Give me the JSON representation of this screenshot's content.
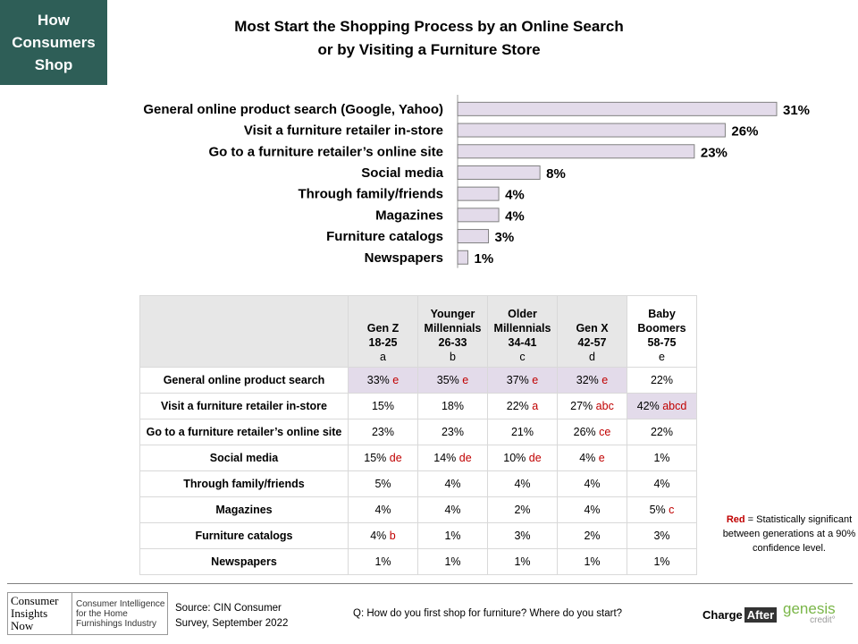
{
  "badge": {
    "line1": "How",
    "line2": "Consumers",
    "line3": "Shop"
  },
  "title": {
    "line1": "Most Start the Shopping Process by an Online Search",
    "line2": "or by Visiting  a Furniture Store"
  },
  "chart_data": {
    "type": "bar",
    "orientation": "horizontal",
    "categories": [
      "General online product search (Google, Yahoo)",
      "Visit a furniture retailer in-store",
      "Go to a furniture retailer’s online site",
      "Social media",
      "Through family/friends",
      "Magazines",
      "Furniture catalogs",
      "Newspapers"
    ],
    "values": [
      31,
      26,
      23,
      8,
      4,
      4,
      3,
      1
    ],
    "value_labels": [
      "31%",
      "26%",
      "23%",
      "8%",
      "4%",
      "4%",
      "3%",
      "1%"
    ],
    "bar_color": "#e3dbea",
    "bar_border": "#808080",
    "xlim": [
      0,
      31
    ]
  },
  "table": {
    "columns": [
      {
        "lines": [
          "Gen Z",
          "18-25"
        ],
        "letter": "a"
      },
      {
        "lines": [
          "Younger",
          "Millennials",
          "26-33"
        ],
        "letter": "b"
      },
      {
        "lines": [
          "Older",
          "Millennials",
          "34-41"
        ],
        "letter": "c"
      },
      {
        "lines": [
          "Gen X",
          "42-57"
        ],
        "letter": "d"
      },
      {
        "lines": [
          "Baby",
          "Boomers",
          "58-75"
        ],
        "letter": "e"
      }
    ],
    "rows": [
      {
        "label": "General online product search",
        "cells": [
          {
            "v": "33%",
            "sig": "e",
            "hl": true
          },
          {
            "v": "35%",
            "sig": "e",
            "hl": true
          },
          {
            "v": "37%",
            "sig": "e",
            "hl": true
          },
          {
            "v": "32%",
            "sig": "e",
            "hl": true
          },
          {
            "v": "22%",
            "sig": "",
            "hl": false
          }
        ]
      },
      {
        "label": "Visit a furniture retailer in-store",
        "cells": [
          {
            "v": "15%",
            "sig": "",
            "hl": false
          },
          {
            "v": "18%",
            "sig": "",
            "hl": false
          },
          {
            "v": "22%",
            "sig": "a",
            "hl": false
          },
          {
            "v": "27%",
            "sig": "abc",
            "hl": false
          },
          {
            "v": "42%",
            "sig": "abcd",
            "hl": true
          }
        ]
      },
      {
        "label": "Go to a furniture retailer’s online site",
        "cells": [
          {
            "v": "23%",
            "sig": "",
            "hl": false
          },
          {
            "v": "23%",
            "sig": "",
            "hl": false
          },
          {
            "v": "21%",
            "sig": "",
            "hl": false
          },
          {
            "v": "26%",
            "sig": "ce",
            "hl": false
          },
          {
            "v": "22%",
            "sig": "",
            "hl": false
          }
        ]
      },
      {
        "label": "Social media",
        "cells": [
          {
            "v": "15%",
            "sig": "de",
            "hl": false
          },
          {
            "v": "14%",
            "sig": "de",
            "hl": false
          },
          {
            "v": "10%",
            "sig": "de",
            "hl": false
          },
          {
            "v": "4%",
            "sig": "e",
            "hl": false
          },
          {
            "v": "1%",
            "sig": "",
            "hl": false
          }
        ]
      },
      {
        "label": "Through family/friends",
        "cells": [
          {
            "v": "5%",
            "sig": "",
            "hl": false
          },
          {
            "v": "4%",
            "sig": "",
            "hl": false
          },
          {
            "v": "4%",
            "sig": "",
            "hl": false
          },
          {
            "v": "4%",
            "sig": "",
            "hl": false
          },
          {
            "v": "4%",
            "sig": "",
            "hl": false
          }
        ]
      },
      {
        "label": "Magazines",
        "cells": [
          {
            "v": "4%",
            "sig": "",
            "hl": false
          },
          {
            "v": "4%",
            "sig": "",
            "hl": false
          },
          {
            "v": "2%",
            "sig": "",
            "hl": false
          },
          {
            "v": "4%",
            "sig": "",
            "hl": false
          },
          {
            "v": "5%",
            "sig": "c",
            "hl": false
          }
        ]
      },
      {
        "label": "Furniture catalogs",
        "cells": [
          {
            "v": "4%",
            "sig": "b",
            "hl": false
          },
          {
            "v": "1%",
            "sig": "",
            "hl": false
          },
          {
            "v": "3%",
            "sig": "",
            "hl": false
          },
          {
            "v": "2%",
            "sig": "",
            "hl": false
          },
          {
            "v": "3%",
            "sig": "",
            "hl": false
          }
        ]
      },
      {
        "label": "Newspapers",
        "cells": [
          {
            "v": "1%",
            "sig": "",
            "hl": false
          },
          {
            "v": "1%",
            "sig": "",
            "hl": false
          },
          {
            "v": "1%",
            "sig": "",
            "hl": false
          },
          {
            "v": "1%",
            "sig": "",
            "hl": false
          },
          {
            "v": "1%",
            "sig": "",
            "hl": false
          }
        ]
      }
    ]
  },
  "note": {
    "red": "Red",
    "rest": " = Statistically significant between generations at a 90% confidence level."
  },
  "footer": {
    "cin_logo": {
      "l1": "Consumer",
      "l2": "Insights",
      "l3": "Now",
      "s1": "Consumer Intelligence",
      "s2": "for the Home",
      "s3": "Furnishings Industry"
    },
    "source_l1": "Source: CIN Consumer",
    "source_l2": "Survey, September  2022",
    "question": "Q: How do you first shop for furniture? Where do you start?",
    "chargeafter_a": "Charge",
    "chargeafter_b": "After",
    "genesis_a": "genesis",
    "genesis_b": "credit°"
  }
}
